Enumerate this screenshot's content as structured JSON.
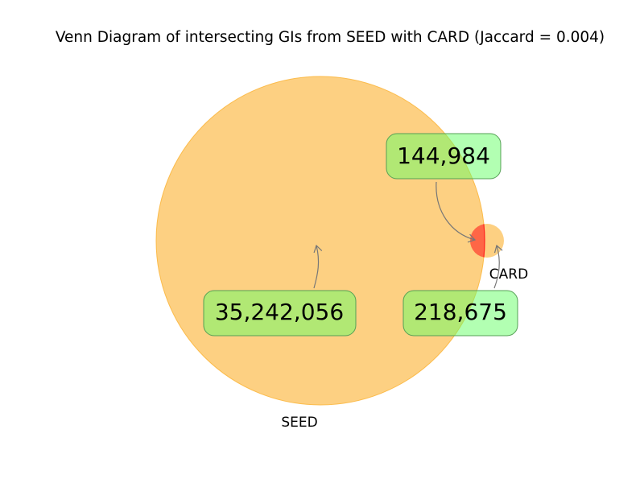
{
  "chart_data": {
    "type": "venn",
    "title": "Venn Diagram of intersecting GIs from SEED with CARD (Jaccard = 0.004)",
    "sets": [
      {
        "name": "SEED",
        "only_count": 35242056,
        "label": "35,242,056",
        "color": "#fcb73f"
      },
      {
        "name": "CARD",
        "only_count": 218675,
        "label": "218,675",
        "color": "#fcb73f"
      }
    ],
    "intersection": {
      "sets": [
        "SEED",
        "CARD"
      ],
      "count": 144984,
      "label": "144,984",
      "color": "#ff4040"
    },
    "jaccard": 0.004,
    "label_box_color": "#66ff66"
  }
}
